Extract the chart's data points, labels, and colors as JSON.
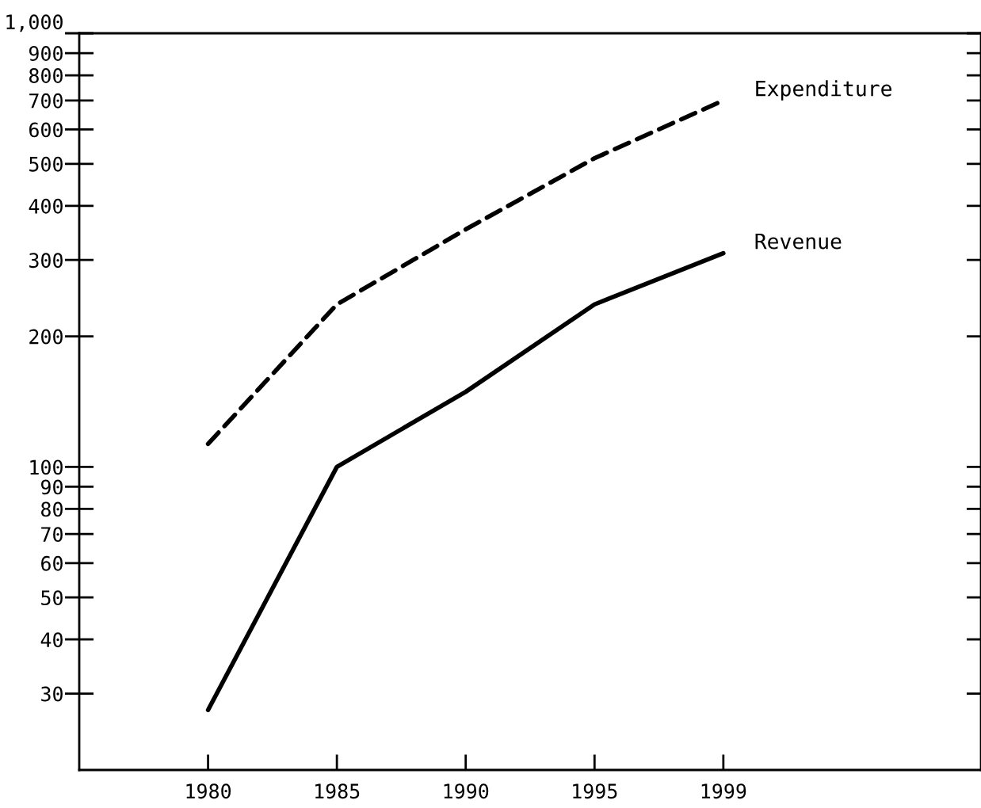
{
  "chart_data": {
    "type": "line",
    "categories": [
      "1980",
      "1985",
      "1990",
      "1995",
      "1999"
    ],
    "series": [
      {
        "name": "Expenditure",
        "color": "#000000",
        "line_style": "dashed",
        "values": [
          113,
          237,
          353,
          515,
          700
        ]
      },
      {
        "name": "Revenue",
        "color": "#000000",
        "line_style": "solid",
        "values": [
          27.5,
          100,
          149,
          237,
          311
        ]
      }
    ],
    "log": "y",
    "ylim": [
      20,
      1000
    ],
    "yticks": [
      30,
      40,
      50,
      60,
      70,
      80,
      90,
      100,
      200,
      300,
      400,
      500,
      600,
      700,
      800,
      900,
      {
        "value": 1000,
        "label": "1,000"
      }
    ],
    "grid": false,
    "legend": false,
    "marker": "none"
  }
}
